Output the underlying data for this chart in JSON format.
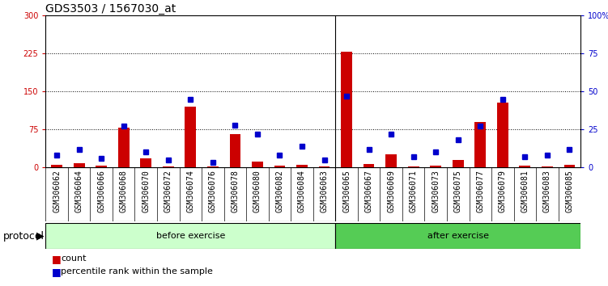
{
  "title": "GDS3503 / 1567030_at",
  "samples": [
    "GSM306062",
    "GSM306064",
    "GSM306066",
    "GSM306068",
    "GSM306070",
    "GSM306072",
    "GSM306074",
    "GSM306076",
    "GSM306078",
    "GSM306080",
    "GSM306082",
    "GSM306084",
    "GSM306063",
    "GSM306065",
    "GSM306067",
    "GSM306069",
    "GSM306071",
    "GSM306073",
    "GSM306075",
    "GSM306077",
    "GSM306079",
    "GSM306081",
    "GSM306083",
    "GSM306085"
  ],
  "count": [
    5,
    8,
    3,
    78,
    18,
    2,
    120,
    2,
    65,
    12,
    3,
    5,
    2,
    228,
    7,
    25,
    2,
    3,
    15,
    90,
    128,
    3,
    2,
    5
  ],
  "percentile": [
    8,
    12,
    6,
    27,
    10,
    5,
    45,
    3,
    28,
    22,
    8,
    14,
    5,
    47,
    12,
    22,
    7,
    10,
    18,
    27,
    45,
    7,
    8,
    12
  ],
  "before_count": 13,
  "before_label": "before exercise",
  "after_label": "after exercise",
  "protocol_label": "protocol",
  "ylim_left": [
    0,
    300
  ],
  "ylim_right": [
    0,
    100
  ],
  "yticks_left": [
    0,
    75,
    150,
    225,
    300
  ],
  "yticks_right": [
    0,
    25,
    50,
    75,
    100
  ],
  "yticklabels_right": [
    "0",
    "25",
    "50",
    "75",
    "100%"
  ],
  "bar_color": "#cc0000",
  "dot_color": "#0000cc",
  "before_bg": "#ccffcc",
  "after_bg": "#55cc55",
  "sample_bg": "#cccccc",
  "title_fontsize": 10,
  "tick_fontsize": 7,
  "label_fontsize": 8,
  "legend_fontsize": 8,
  "protocol_fontsize": 9
}
